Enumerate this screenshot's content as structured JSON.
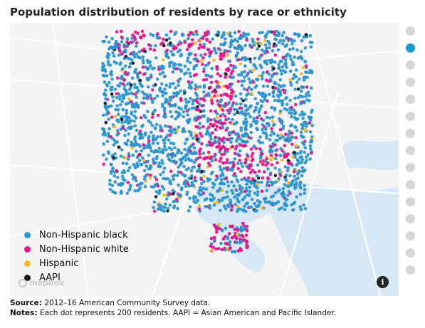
{
  "title": "Population distribution of residents by race or ethnicity",
  "legend": [
    {
      "label": "Non-Hispanic black",
      "color": "#2b95cf"
    },
    {
      "label": "Non-Hispanic white",
      "color": "#e4148a"
    },
    {
      "label": "Hispanic",
      "color": "#f7b825"
    },
    {
      "label": "AAPI",
      "color": "#1a1a1a"
    }
  ],
  "map": {
    "attribution_logo": "mapbox",
    "info_icon": "i",
    "water_color": "#d6e8f3",
    "land_color": "#f4f4f4"
  },
  "pager": {
    "count": 15,
    "active_index": 1
  },
  "footer": {
    "source_label": "Source:",
    "source_text": "2012–16 American Community Survey data.",
    "notes_label": "Notes:",
    "notes_text": "Each dot represents 200 residents. AAPI = Asian American and Pacific Islander."
  }
}
